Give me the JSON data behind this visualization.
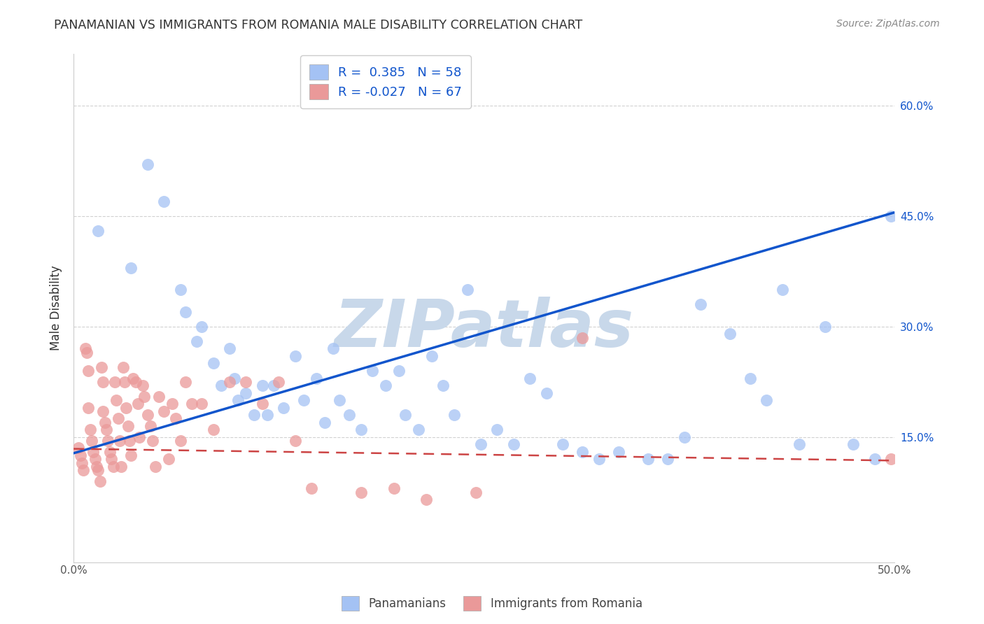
{
  "title": "PANAMANIAN VS IMMIGRANTS FROM ROMANIA MALE DISABILITY CORRELATION CHART",
  "source": "Source: ZipAtlas.com",
  "ylabel": "Male Disability",
  "xlim": [
    0,
    0.5
  ],
  "ylim": [
    -0.02,
    0.67
  ],
  "xticks": [
    0.0,
    0.1,
    0.2,
    0.3,
    0.4,
    0.5
  ],
  "xticklabels": [
    "0.0%",
    "",
    "",
    "",
    "",
    "50.0%"
  ],
  "yticks": [
    0.15,
    0.3,
    0.45,
    0.6
  ],
  "yticklabels": [
    "15.0%",
    "30.0%",
    "45.0%",
    "60.0%"
  ],
  "blue_color": "#a4c2f4",
  "pink_color": "#ea9999",
  "blue_line_color": "#1155cc",
  "pink_line_color": "#cc4444",
  "blue_label": "Panamanians",
  "pink_label": "Immigrants from Romania",
  "R_blue": 0.385,
  "N_blue": 58,
  "R_pink": -0.027,
  "N_pink": 67,
  "blue_trend_start_y": 0.128,
  "blue_trend_end_y": 0.455,
  "pink_trend_start_y": 0.134,
  "pink_trend_end_y": 0.118,
  "blue_scatter_x": [
    0.015,
    0.035,
    0.045,
    0.055,
    0.065,
    0.068,
    0.075,
    0.078,
    0.085,
    0.09,
    0.095,
    0.098,
    0.1,
    0.105,
    0.11,
    0.115,
    0.118,
    0.122,
    0.128,
    0.135,
    0.14,
    0.148,
    0.153,
    0.158,
    0.162,
    0.168,
    0.175,
    0.182,
    0.19,
    0.198,
    0.202,
    0.21,
    0.218,
    0.225,
    0.232,
    0.24,
    0.248,
    0.258,
    0.268,
    0.278,
    0.288,
    0.298,
    0.31,
    0.32,
    0.332,
    0.35,
    0.362,
    0.372,
    0.382,
    0.4,
    0.412,
    0.422,
    0.432,
    0.442,
    0.458,
    0.475,
    0.488,
    0.498
  ],
  "blue_scatter_y": [
    0.43,
    0.38,
    0.52,
    0.47,
    0.35,
    0.32,
    0.28,
    0.3,
    0.25,
    0.22,
    0.27,
    0.23,
    0.2,
    0.21,
    0.18,
    0.22,
    0.18,
    0.22,
    0.19,
    0.26,
    0.2,
    0.23,
    0.17,
    0.27,
    0.2,
    0.18,
    0.16,
    0.24,
    0.22,
    0.24,
    0.18,
    0.16,
    0.26,
    0.22,
    0.18,
    0.35,
    0.14,
    0.16,
    0.14,
    0.23,
    0.21,
    0.14,
    0.13,
    0.12,
    0.13,
    0.12,
    0.12,
    0.15,
    0.33,
    0.29,
    0.23,
    0.2,
    0.35,
    0.14,
    0.3,
    0.14,
    0.12,
    0.45
  ],
  "pink_scatter_x": [
    0.003,
    0.004,
    0.005,
    0.006,
    0.007,
    0.008,
    0.009,
    0.009,
    0.01,
    0.011,
    0.012,
    0.013,
    0.014,
    0.015,
    0.016,
    0.017,
    0.018,
    0.018,
    0.019,
    0.02,
    0.021,
    0.022,
    0.023,
    0.024,
    0.025,
    0.026,
    0.027,
    0.028,
    0.029,
    0.03,
    0.031,
    0.032,
    0.033,
    0.034,
    0.035,
    0.036,
    0.038,
    0.039,
    0.04,
    0.042,
    0.043,
    0.045,
    0.047,
    0.048,
    0.05,
    0.052,
    0.055,
    0.058,
    0.06,
    0.062,
    0.065,
    0.068,
    0.072,
    0.078,
    0.085,
    0.095,
    0.105,
    0.115,
    0.125,
    0.135,
    0.145,
    0.175,
    0.195,
    0.215,
    0.245,
    0.31,
    0.498
  ],
  "pink_scatter_y": [
    0.135,
    0.125,
    0.115,
    0.105,
    0.27,
    0.265,
    0.24,
    0.19,
    0.16,
    0.145,
    0.13,
    0.12,
    0.11,
    0.105,
    0.09,
    0.245,
    0.225,
    0.185,
    0.17,
    0.16,
    0.145,
    0.13,
    0.12,
    0.11,
    0.225,
    0.2,
    0.175,
    0.145,
    0.11,
    0.245,
    0.225,
    0.19,
    0.165,
    0.145,
    0.125,
    0.23,
    0.225,
    0.195,
    0.15,
    0.22,
    0.205,
    0.18,
    0.165,
    0.145,
    0.11,
    0.205,
    0.185,
    0.12,
    0.195,
    0.175,
    0.145,
    0.225,
    0.195,
    0.195,
    0.16,
    0.225,
    0.225,
    0.195,
    0.225,
    0.145,
    0.08,
    0.075,
    0.08,
    0.065,
    0.075,
    0.285,
    0.12
  ],
  "watermark": "ZIPatlas",
  "watermark_color": "#c8d8ea"
}
